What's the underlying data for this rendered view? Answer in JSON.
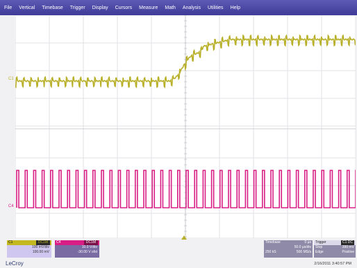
{
  "menu": {
    "items": [
      "File",
      "Vertical",
      "Timebase",
      "Trigger",
      "Display",
      "Cursors",
      "Measure",
      "Math",
      "Analysis",
      "Utilities",
      "Help"
    ]
  },
  "traces": {
    "c1_label": "C1",
    "c4_label": "C4",
    "c1_color": "#b9b02a",
    "c4_color": "#d81e85"
  },
  "channels": {
    "c1": {
      "name": "C1",
      "tag": "DC1M",
      "line1": "100 mV/div",
      "line2": "100.00 mV"
    },
    "c4": {
      "name": "C4",
      "tag": "DC1M",
      "line1": "10.0 V/div",
      "line2": "-30.00 V ofst"
    }
  },
  "timebase": {
    "label": "Timebase",
    "delay": "0 µs",
    "scale": "50.0 µs/div",
    "samples": "250 kS",
    "rate": "500 MS/s"
  },
  "trigger": {
    "label": "Trigger",
    "tag": "C1 DC",
    "mode": "Stop",
    "level": "390 mV",
    "type": "Edge",
    "slope": "Positive"
  },
  "footer": {
    "brand": "LeCroy",
    "datetime": "2/16/2011 3:40:57 PM"
  }
}
